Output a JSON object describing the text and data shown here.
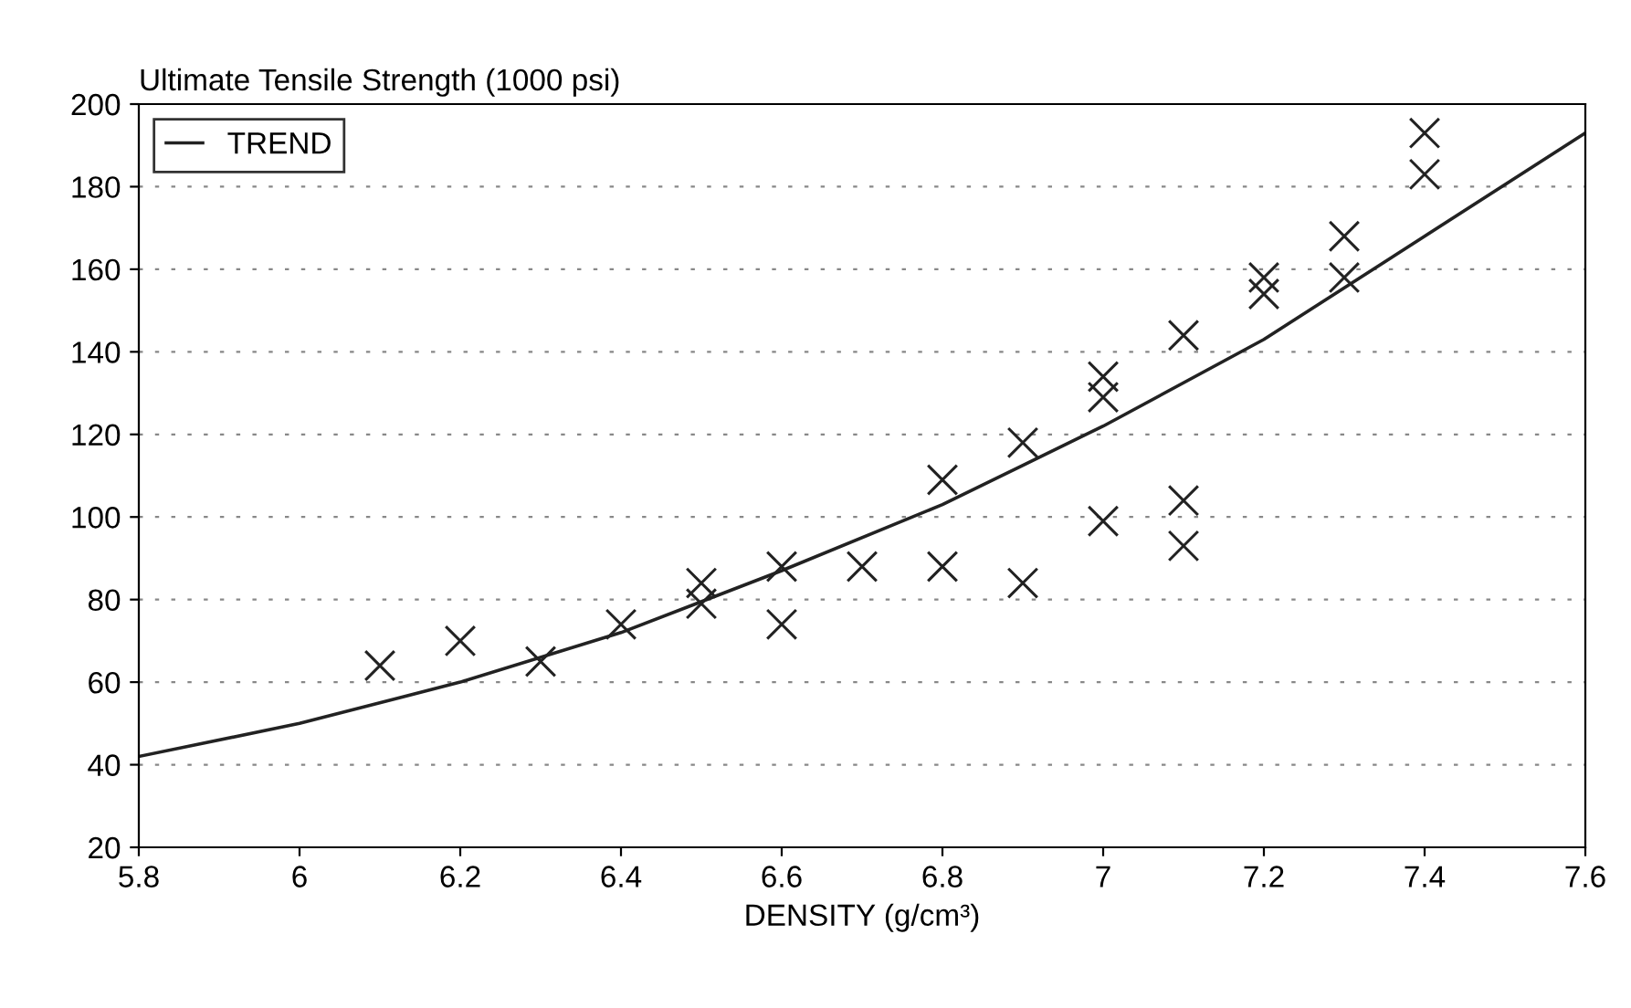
{
  "chart_data": {
    "type": "scatter",
    "ylabel": "Ultimate Tensile Strength (1000 psi)",
    "xlabel": "DENSITY (g/cm³)",
    "xlim": [
      5.8,
      7.6
    ],
    "xticks": [
      5.8,
      6,
      6.2,
      6.4,
      6.6,
      6.8,
      7,
      7.2,
      7.4,
      7.6
    ],
    "ylim": [
      20,
      200
    ],
    "yticks": [
      20,
      40,
      60,
      80,
      100,
      120,
      140,
      160,
      180,
      200
    ],
    "grid": "y",
    "legend": "top left",
    "series": [
      {
        "marker": "cross",
        "color": "#222222",
        "x": [
          6.1,
          6.2,
          6.3,
          6.4,
          6.5,
          6.5,
          6.6,
          6.6,
          6.7,
          6.8,
          6.8,
          6.9,
          6.9,
          7.0,
          7.0,
          7.0,
          7.1,
          7.1,
          7.1,
          7.2,
          7.2,
          7.3,
          7.3,
          7.4,
          7.4
        ],
        "values": [
          64,
          70,
          65,
          74,
          84,
          79,
          88,
          74,
          88,
          109,
          88,
          118,
          84,
          134,
          129,
          99,
          144,
          104,
          93,
          158,
          154,
          168,
          158,
          193,
          183
        ]
      },
      {
        "type": "line",
        "name": "TREND",
        "color": "#222222",
        "line_style": "solid",
        "marker": "none",
        "x": [
          5.8,
          6.0,
          6.2,
          6.4,
          6.6,
          6.8,
          7.0,
          7.2,
          7.4,
          7.6
        ],
        "values": [
          42,
          50,
          60,
          72,
          87,
          103,
          122,
          143,
          168,
          193
        ]
      }
    ]
  }
}
